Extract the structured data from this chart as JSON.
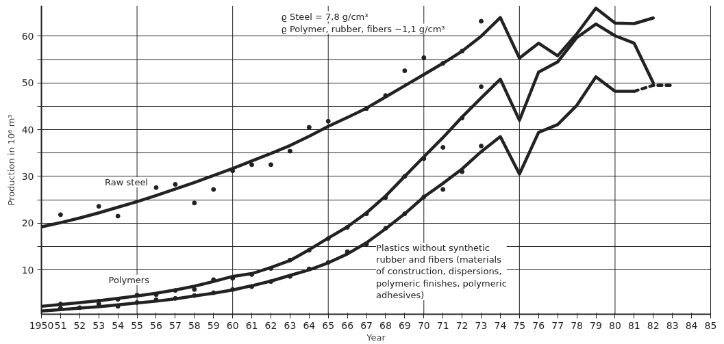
{
  "chart_data": {
    "type": "line",
    "xlabel": "Year",
    "ylabel": "Production in 10⁶ m³",
    "annotations": [
      "ϱ Steel = 7,8 g/cm³",
      "ϱ Polymer, rubber, fibers ~1,1 g/cm³"
    ],
    "xlim": [
      1950,
      1985
    ],
    "ylim": [
      0.5,
      66.5
    ],
    "xticks": [
      {
        "value": 1950,
        "label": "1950"
      },
      {
        "value": 1951,
        "label": "51"
      },
      {
        "value": 1952,
        "label": "52"
      },
      {
        "value": 1953,
        "label": "53"
      },
      {
        "value": 1954,
        "label": "54"
      },
      {
        "value": 1955,
        "label": "55"
      },
      {
        "value": 1956,
        "label": "56"
      },
      {
        "value": 1957,
        "label": "57"
      },
      {
        "value": 1958,
        "label": "58"
      },
      {
        "value": 1959,
        "label": "59"
      },
      {
        "value": 1960,
        "label": "60"
      },
      {
        "value": 1961,
        "label": "61"
      },
      {
        "value": 1962,
        "label": "62"
      },
      {
        "value": 1963,
        "label": "63"
      },
      {
        "value": 1964,
        "label": "64"
      },
      {
        "value": 1965,
        "label": "65"
      },
      {
        "value": 1966,
        "label": "66"
      },
      {
        "value": 1967,
        "label": "67"
      },
      {
        "value": 1968,
        "label": "68"
      },
      {
        "value": 1969,
        "label": "69"
      },
      {
        "value": 1970,
        "label": "70"
      },
      {
        "value": 1971,
        "label": "71"
      },
      {
        "value": 1972,
        "label": "72"
      },
      {
        "value": 1973,
        "label": "73"
      },
      {
        "value": 1974,
        "label": "74"
      },
      {
        "value": 1975,
        "label": "75"
      },
      {
        "value": 1976,
        "label": "76"
      },
      {
        "value": 1977,
        "label": "77"
      },
      {
        "value": 1978,
        "label": "78"
      },
      {
        "value": 1979,
        "label": "79"
      },
      {
        "value": 1980,
        "label": "80"
      },
      {
        "value": 1981,
        "label": "81"
      },
      {
        "value": 1982,
        "label": "82"
      },
      {
        "value": 1983,
        "label": "83"
      },
      {
        "value": 1984,
        "label": "84"
      },
      {
        "value": 1985,
        "label": "85"
      }
    ],
    "yticks": [
      10,
      {
        "value": 15,
        "label": null
      },
      20,
      {
        "value": 25,
        "label": null
      },
      30,
      {
        "value": 35,
        "label": null
      },
      40,
      {
        "value": 45,
        "label": null
      },
      50,
      {
        "value": 55,
        "label": null
      },
      60
    ],
    "grid": "y",
    "ref_lines": [
      {
        "axis": "x",
        "value": 1955,
        "label": null,
        "color": "#222222"
      },
      {
        "axis": "x",
        "value": 1960,
        "label": null,
        "color": "#222222"
      },
      {
        "axis": "x",
        "value": 1965,
        "label": null,
        "color": "#222222"
      },
      {
        "axis": "x",
        "value": 1970,
        "label": null,
        "color": "#222222"
      },
      {
        "axis": "x",
        "value": 1975,
        "label": null,
        "color": "#222222"
      },
      {
        "axis": "x",
        "value": 1980,
        "label": null,
        "color": "#222222"
      }
    ],
    "series": [
      {
        "name": "Raw steel",
        "color": "#222222",
        "x": [
          1950,
          1951,
          1952,
          1953,
          1954,
          1955,
          1956,
          1957,
          1958,
          1959,
          1960,
          1961,
          1962,
          1963,
          1964,
          1965,
          1966,
          1967,
          1968,
          1969,
          1970,
          1971,
          1972,
          1973,
          1974,
          1975,
          1976,
          1977,
          1978,
          1979,
          1980,
          1981,
          1982
        ],
        "values": [
          19.2,
          20.1,
          21.1,
          22.2,
          23.4,
          24.6,
          25.9,
          27.3,
          28.7,
          30.2,
          31.7,
          33.3,
          34.9,
          36.6,
          38.6,
          40.7,
          42.6,
          44.6,
          47.0,
          49.4,
          51.8,
          54.2,
          56.8,
          60.0,
          64.0,
          55.3,
          58.5,
          55.8,
          60.5,
          66.0,
          62.8,
          62.7,
          63.9
        ]
      },
      {
        "type": "scatter",
        "color": "#222222",
        "x": [
          1951,
          1953,
          1954,
          1956,
          1957,
          1958,
          1959,
          1960,
          1961,
          1962,
          1963,
          1964,
          1965,
          1967,
          1968,
          1969,
          1970,
          1971,
          1972,
          1973
        ],
        "values": [
          21.8,
          23.6,
          21.5,
          27.6,
          28.3,
          24.3,
          27.2,
          31.2,
          32.5,
          32.5,
          35.4,
          40.5,
          41.8,
          44.5,
          47.3,
          52.6,
          55.4,
          54.2,
          56.8,
          63.2
        ]
      },
      {
        "name": "Polymers",
        "color": "#222222",
        "x": [
          1950,
          1951,
          1952,
          1953,
          1954,
          1955,
          1956,
          1957,
          1958,
          1959,
          1960,
          1961,
          1962,
          1963,
          1964,
          1965,
          1966,
          1967,
          1968,
          1969,
          1970,
          1971,
          1972,
          1973,
          1974,
          1975,
          1976,
          1977,
          1978,
          1979,
          1980,
          1981,
          1982
        ],
        "values": [
          2.2,
          2.6,
          3.0,
          3.4,
          3.9,
          4.4,
          5.0,
          5.7,
          6.5,
          7.5,
          8.6,
          9.2,
          10.5,
          12.0,
          14.3,
          16.8,
          19.2,
          22.2,
          25.8,
          30.0,
          34.2,
          38.3,
          42.7,
          46.8,
          50.8,
          42.0,
          52.3,
          54.5,
          59.7,
          62.6,
          60.1,
          58.5,
          50.0
        ]
      },
      {
        "type": "scatter",
        "color": "#222222",
        "x": [
          1951,
          1953,
          1954,
          1955,
          1956,
          1957,
          1958,
          1959,
          1960,
          1961,
          1962,
          1963,
          1964,
          1965,
          1966,
          1967,
          1968,
          1969,
          1970,
          1971,
          1972,
          1973
        ],
        "values": [
          2.7,
          3.3,
          3.7,
          4.6,
          4.7,
          5.6,
          5.8,
          7.9,
          8.2,
          9.0,
          10.3,
          12.1,
          14.2,
          16.7,
          19.1,
          22.0,
          25.5,
          30.0,
          33.8,
          36.2,
          42.5,
          49.2
        ]
      },
      {
        "name": "Plastics without synthetic rubber and fibers (materials of construction, dispersions, polymeric finishes, polymeric adhesives)",
        "color": "#222222",
        "x": [
          1950,
          1951,
          1952,
          1953,
          1954,
          1955,
          1956,
          1957,
          1958,
          1959,
          1960,
          1961,
          1962,
          1963,
          1964,
          1965,
          1966,
          1967,
          1968,
          1969,
          1970,
          1971,
          1972,
          1973,
          1974,
          1975,
          1976,
          1977,
          1978,
          1979,
          1980,
          1981
        ],
        "values": [
          1.2,
          1.5,
          1.8,
          2.1,
          2.5,
          2.9,
          3.3,
          3.8,
          4.4,
          5.0,
          5.7,
          6.6,
          7.6,
          8.8,
          10.0,
          11.5,
          13.4,
          15.8,
          18.8,
          22.0,
          25.6,
          28.5,
          31.6,
          35.3,
          38.5,
          30.5,
          39.4,
          41.1,
          45.2,
          51.3,
          48.2,
          48.2
        ]
      },
      {
        "type": "scatter",
        "color": "#222222",
        "x": [
          1951,
          1952,
          1953,
          1954,
          1955,
          1956,
          1957,
          1958,
          1959,
          1960,
          1961,
          1962,
          1963,
          1964,
          1965,
          1966,
          1967,
          1968,
          1969,
          1970,
          1971,
          1972,
          1973
        ],
        "values": [
          1.8,
          1.9,
          2.7,
          2.2,
          3.0,
          3.6,
          3.9,
          4.5,
          5.1,
          5.8,
          6.4,
          7.5,
          8.6,
          10.2,
          11.6,
          13.9,
          15.5,
          18.9,
          22.0,
          25.6,
          27.2,
          31.0,
          36.5
        ]
      },
      {
        "type": "line",
        "line_style": "dashed",
        "color": "#222222",
        "x": [
          1981,
          1982,
          1983
        ],
        "values": [
          48.2,
          49.5,
          49.5
        ]
      }
    ]
  }
}
